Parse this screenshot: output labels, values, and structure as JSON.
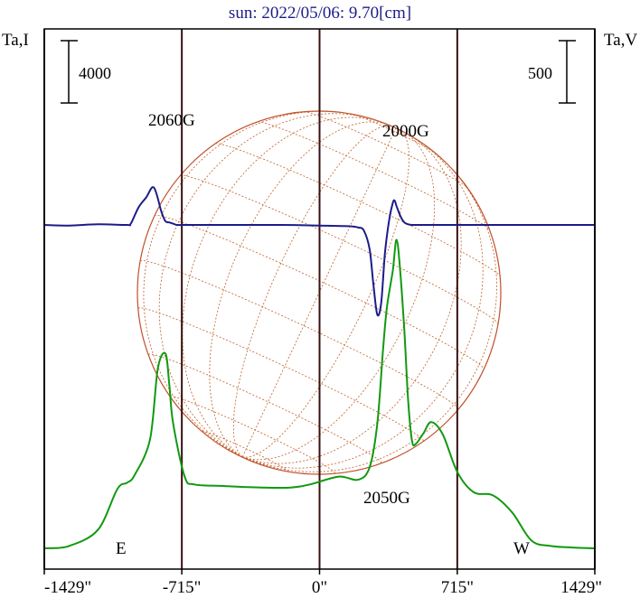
{
  "chart_data": {
    "type": "line",
    "title": "sun: 2022/05/06: 9.70[cm]",
    "left_axis_label": "Ta,I",
    "right_axis_label": "Ta,V",
    "left_scale_bar_label": "4000",
    "right_scale_bar_label": "500",
    "x_tick_labels": [
      "-1429\"",
      "-715\"",
      "0\"",
      "715\"",
      "1429\""
    ],
    "x_tick_values": [
      -1429,
      -715,
      0,
      715,
      1429
    ],
    "xlim": [
      -1429,
      1429
    ],
    "vertical_markers": [
      -715,
      0,
      715,
      -1429,
      1429
    ],
    "direction_labels": {
      "east": "E",
      "west": "W"
    },
    "annotations": [
      {
        "text": "2060G",
        "x": -715
      },
      {
        "text": "2000G",
        "x": 450
      },
      {
        "text": "2050G",
        "x": 370
      }
    ],
    "series": [
      {
        "role": "stokes-I",
        "color": "#119911",
        "x": [
          -1429,
          -1300,
          -1150,
          -1050,
          -1000,
          -960,
          -880,
          -840,
          -800,
          -780,
          -760,
          -700,
          -650,
          -500,
          -300,
          -150,
          -50,
          100,
          200,
          260,
          300,
          330,
          350,
          380,
          400,
          420,
          440,
          460,
          480,
          500,
          540,
          580,
          640,
          715,
          800,
          900,
          1000,
          1100,
          1200,
          1300,
          1429
        ],
        "y": [
          0,
          150,
          1200,
          3800,
          4200,
          4700,
          7000,
          11500,
          12500,
          10500,
          8000,
          4600,
          4100,
          4000,
          3900,
          3900,
          4100,
          4600,
          4400,
          5200,
          8000,
          12800,
          15500,
          17800,
          19800,
          17600,
          14000,
          9500,
          6900,
          6700,
          7400,
          8100,
          7300,
          4900,
          3600,
          3400,
          2300,
          500,
          150,
          60,
          0
        ]
      },
      {
        "role": "stokes-V",
        "color": "#1c1c8a",
        "x": [
          -1429,
          -1300,
          -1150,
          -1000,
          -980,
          -940,
          -900,
          -860,
          -820,
          -800,
          -780,
          -760,
          -740,
          -700,
          -600,
          -400,
          -200,
          0,
          150,
          200,
          230,
          260,
          280,
          300,
          320,
          340,
          360,
          380,
          390,
          400,
          420,
          440,
          460,
          480,
          500,
          520,
          540,
          560,
          600,
          700,
          800,
          1000,
          1100,
          1200,
          1300,
          1429
        ],
        "y": [
          0,
          -5,
          5,
          0,
          10,
          140,
          220,
          300,
          100,
          30,
          20,
          10,
          0,
          0,
          0,
          0,
          0,
          -5,
          -10,
          -20,
          -45,
          -195,
          -485,
          -720,
          -625,
          -220,
          25,
          175,
          195,
          150,
          70,
          20,
          5,
          0,
          0,
          0,
          0,
          0,
          0,
          0,
          0,
          0,
          0,
          0,
          0,
          0
        ]
      }
    ]
  },
  "colors": {
    "title": "#1c1c8a",
    "disk": "#c0502a",
    "grid": "#c0602a",
    "markers": "#3a1010",
    "axes": "#000000"
  }
}
